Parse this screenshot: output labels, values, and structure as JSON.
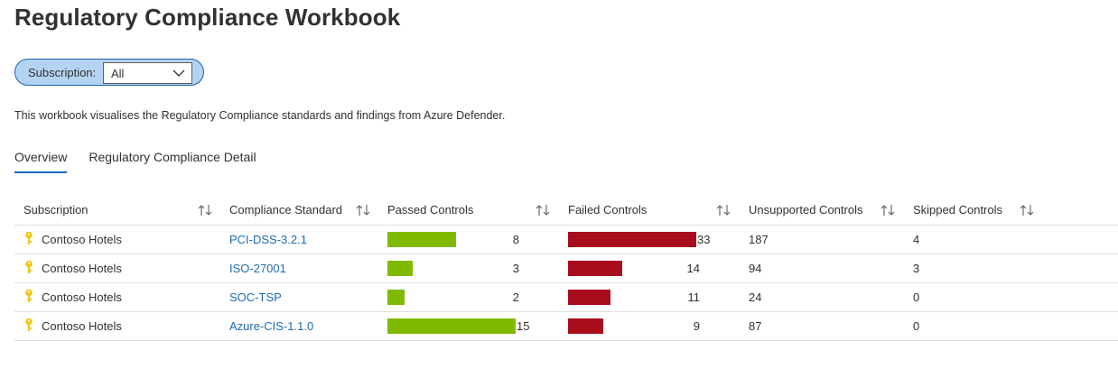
{
  "page": {
    "title": "Regulatory Compliance Workbook",
    "description": "This workbook visualises the Regulatory Compliance standards and findings from Azure Defender."
  },
  "parameter": {
    "label": "Subscription:",
    "value": "All"
  },
  "tabs": [
    {
      "label": "Overview",
      "active": true
    },
    {
      "label": "Regulatory Compliance Detail",
      "active": false
    }
  ],
  "table": {
    "columns": [
      "Subscription",
      "Compliance Standard",
      "Passed Controls",
      "Failed Controls",
      "Unsupported Controls",
      "Skipped Controls"
    ],
    "rows": [
      {
        "subscription": "Contoso Hotels",
        "standard": "PCI-DSS-3.2.1",
        "passed": "8",
        "failed": "33",
        "unsupported": "187",
        "skipped": "4"
      },
      {
        "subscription": "Contoso Hotels",
        "standard": "ISO-27001",
        "passed": "3",
        "failed": "14",
        "unsupported": "94",
        "skipped": "3"
      },
      {
        "subscription": "Contoso Hotels",
        "standard": "SOC-TSP",
        "passed": "2",
        "failed": "11",
        "unsupported": "24",
        "skipped": "0"
      },
      {
        "subscription": "Contoso Hotels",
        "standard": "Azure-CIS-1.1.0",
        "passed": "15",
        "failed": "9",
        "unsupported": "87",
        "skipped": "0"
      }
    ],
    "passed_max": 15,
    "failed_max": 33
  },
  "colors": {
    "passed_bar": "#7fba00",
    "failed_bar": "#a80d1b",
    "link": "#1f6bb0",
    "key_icon": "#f2c811",
    "accent": "#0f6cbd"
  },
  "icons": {
    "subscription_row": "key-icon",
    "sort": "sort-arrows-icon",
    "dropdown": "chevron-down-icon"
  }
}
